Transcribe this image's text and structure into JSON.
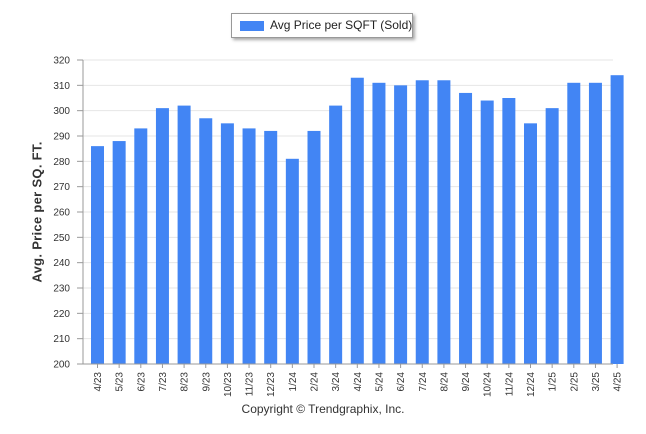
{
  "chart_data": {
    "type": "bar",
    "categories": [
      "4/23",
      "5/23",
      "6/23",
      "7/23",
      "8/23",
      "9/23",
      "10/23",
      "11/23",
      "12/23",
      "1/24",
      "2/24",
      "3/24",
      "4/24",
      "5/24",
      "6/24",
      "7/24",
      "8/24",
      "9/24",
      "10/24",
      "11/24",
      "12/24",
      "1/25",
      "2/25",
      "3/25",
      "4/25"
    ],
    "series": [
      {
        "name": "Avg Price per SQFT (Sold)",
        "values": [
          286,
          288,
          293,
          301,
          302,
          297,
          295,
          293,
          292,
          281,
          292,
          302,
          313,
          311,
          310,
          312,
          312,
          307,
          304,
          305,
          295,
          301,
          311,
          311,
          314
        ]
      }
    ],
    "title": "",
    "xlabel": "",
    "ylabel": "Avg. Price per SQ. FT.",
    "ylim": [
      200,
      320
    ],
    "yticks": [
      200,
      210,
      220,
      230,
      240,
      250,
      260,
      270,
      280,
      290,
      300,
      310,
      320
    ],
    "grid": true,
    "legend_position": "top-center",
    "colors": {
      "bar": "#4285f4",
      "grid": "#e6e6e6",
      "axis": "#999999"
    }
  },
  "footer": {
    "copyright": "Copyright © Trendgraphix, Inc."
  }
}
